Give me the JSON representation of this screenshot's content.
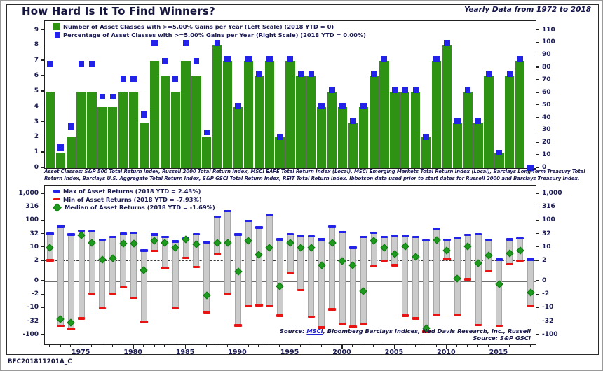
{
  "page": {
    "title": "How Hard Is It To Find Winners?",
    "period_note": "Yearly Data from 1972 to 2018",
    "chart_code": "BFC201811201A_C"
  },
  "colors": {
    "bar_green": "#2e9213",
    "marker_blue": "#2323e8",
    "marker_red": "#e81414",
    "range_gray": "#cbcbcb",
    "diamond_green": "#1e9a1e",
    "diamond_edge": "#0f7a0f",
    "text_navy": "#1b1b55",
    "link_blue": "#2222cc"
  },
  "top_chart": {
    "legend": [
      {
        "swatch": "green-square",
        "label": "Number of Asset Classes with >=5.00% Gains per Year (Left Scale) (2018 YTD = 0)"
      },
      {
        "swatch": "blue-square",
        "label": "Percentage of Asset Classes with >=5.00% Gains per Year (Right Scale) (2018 YTD = 0.00%)"
      }
    ],
    "left_axis_ticks": [
      9,
      8,
      7,
      6,
      5,
      4,
      3,
      2,
      1,
      0
    ],
    "right_axis_ticks": [
      110,
      100,
      90,
      80,
      70,
      60,
      50,
      40,
      30,
      20,
      10,
      0
    ],
    "footnote_lines": [
      "Asset Classes: S&P 500 Total Return Index,  Russell 2000 Total Return Index,  MSCI EAFE Total Return Index (Local),  MSCI Emerging Markets Total Return Index (Local),  Barclays Long-Term Treasury Total",
      "Return Index,  Barclays U.S. Aggregate Total Return Index,  S&P GSCI Total Return Index,  REIT Total Return Index. Ibbotson data used prior to start dates for Russell 2000 and Barclays Treasury Index."
    ]
  },
  "bottom_chart": {
    "legend": [
      {
        "swatch": "blue-dash",
        "label": "Max of Asset Returns (2018 YTD = 2.43%)"
      },
      {
        "swatch": "red-dash",
        "label": "Min of Asset Returns (2018 YTD = -7.93%)"
      },
      {
        "swatch": "green-diamond",
        "label": "Median of Asset Returns (2018 YTD = -1.69%)"
      }
    ],
    "axis_tick_labels": [
      "1,000",
      "316",
      "100",
      "32",
      "10",
      "2",
      "0",
      "-2",
      "-10",
      "-32",
      "-100"
    ],
    "axis_tick_values": [
      1000,
      316,
      100,
      32,
      10,
      2,
      0,
      -2,
      -10,
      -32,
      -100
    ],
    "x_axis_labels": [
      1975,
      1980,
      1985,
      1990,
      1995,
      2000,
      2005,
      2010,
      2015
    ],
    "sources": [
      {
        "prefix": "Source:",
        "link": "MSCI",
        "rest": ", Bloomberg Barclays Indices, Ned Davis Research, Inc., Russell"
      },
      {
        "prefix": "Source:",
        "link": "",
        "rest": " S&P GSCI"
      }
    ]
  },
  "chart_data": [
    {
      "type": "bar",
      "title": "Number and Percentage of Asset Classes with >=5.00% Gains per Year",
      "x": [
        1972,
        1973,
        1974,
        1975,
        1976,
        1977,
        1978,
        1979,
        1980,
        1981,
        1982,
        1983,
        1984,
        1985,
        1986,
        1987,
        1988,
        1989,
        1990,
        1991,
        1992,
        1993,
        1994,
        1995,
        1996,
        1997,
        1998,
        1999,
        2000,
        2001,
        2002,
        2003,
        2004,
        2005,
        2006,
        2007,
        2008,
        2009,
        2010,
        2011,
        2012,
        2013,
        2014,
        2015,
        2016,
        2017,
        2018
      ],
      "series": [
        {
          "name": "Number of Asset Classes with >=5.00% Gains per Year (Left Scale)",
          "type": "bar",
          "axis": "left",
          "values": [
            5,
            1,
            2,
            5,
            5,
            4,
            4,
            5,
            5,
            3,
            7,
            6,
            5,
            7,
            6,
            2,
            8,
            7,
            4,
            7,
            6,
            7,
            2,
            7,
            6,
            6,
            4,
            5,
            4,
            3,
            4,
            6,
            7,
            5,
            5,
            5,
            2,
            7,
            8,
            3,
            5,
            3,
            6,
            1,
            6,
            7,
            0
          ]
        },
        {
          "name": "Percentage of Asset Classes with >=5.00% Gains per Year (Right Scale)",
          "type": "scatter-square",
          "axis": "right",
          "values": [
            83.3,
            16.7,
            33.3,
            83.3,
            83.3,
            57.1,
            57.1,
            71.4,
            71.4,
            42.9,
            100,
            85.7,
            71.4,
            100,
            85.7,
            28.6,
            100,
            87.5,
            50,
            87.5,
            75,
            87.5,
            25,
            87.5,
            75,
            75,
            50,
            62.5,
            50,
            37.5,
            50,
            75,
            87.5,
            62.5,
            62.5,
            62.5,
            25,
            87.5,
            100,
            37.5,
            62.5,
            37.5,
            75,
            12.5,
            75,
            87.5,
            0
          ]
        }
      ],
      "ylim_left": [
        0,
        9
      ],
      "ylim_right": [
        0,
        110
      ],
      "grid": false,
      "legend_position": "top-left"
    },
    {
      "type": "range-bar",
      "title": "Max / Min / Median of Asset Returns (%)",
      "x": [
        1972,
        1973,
        1974,
        1975,
        1976,
        1977,
        1978,
        1979,
        1980,
        1981,
        1982,
        1983,
        1984,
        1985,
        1986,
        1987,
        1988,
        1989,
        1990,
        1991,
        1992,
        1993,
        1994,
        1995,
        1996,
        1997,
        1998,
        1999,
        2000,
        2001,
        2002,
        2003,
        2004,
        2005,
        2006,
        2007,
        2008,
        2009,
        2010,
        2011,
        2012,
        2013,
        2014,
        2015,
        2016,
        2017,
        2018
      ],
      "series": [
        {
          "name": "Max of Asset Returns",
          "marker": "blue-dash",
          "values": [
            34,
            64,
            32,
            44,
            42,
            20,
            26,
            34,
            37,
            7.2,
            32,
            26,
            17,
            22,
            33,
            16,
            145,
            230,
            32,
            100,
            57,
            175,
            21,
            33,
            29,
            27,
            21,
            63,
            39,
            10,
            26,
            37,
            26,
            29,
            28,
            26,
            19,
            52,
            20,
            23,
            31,
            33,
            20,
            2.4,
            21,
            23,
            2.43
          ]
        },
        {
          "name": "Median of Asset Returns",
          "marker": "green-diamond",
          "values": [
            10,
            -25,
            -34,
            30,
            15,
            2.3,
            2.9,
            14,
            14,
            1.1,
            18,
            15,
            10,
            20,
            13,
            -2.1,
            15,
            15,
            1.0,
            18,
            4.1,
            10,
            -0.7,
            15,
            10,
            10,
            1.6,
            15,
            2.0,
            1.6,
            -1.4,
            18,
            10,
            4.6,
            11,
            3.4,
            -55,
            19,
            7,
            0.3,
            11,
            1.8,
            4,
            -0.4,
            5.2,
            7,
            -1.69
          ]
        },
        {
          "name": "Min of Asset Returns",
          "marker": "red-dash",
          "values": [
            2.2,
            -45,
            -60,
            -24,
            -1.8,
            -10,
            -1.8,
            -0.9,
            -2.9,
            -33,
            6.8,
            1.3,
            -10,
            2.9,
            1.4,
            -14,
            4.7,
            -1.9,
            -44,
            -8,
            -7,
            -8,
            -19,
            0.8,
            -1.3,
            -21,
            -52,
            -11,
            -40,
            -49,
            -39,
            1.5,
            2.1,
            1.6,
            -19,
            -24,
            -75,
            -18,
            2.6,
            -18,
            0.2,
            -43,
            1.0,
            -45,
            1.7,
            2.1,
            -7.93
          ]
        }
      ],
      "y_ticks": [
        1000,
        316,
        100,
        32,
        10,
        2,
        0,
        -2,
        -10,
        -32,
        -100
      ],
      "y_scale": "symlog-custom",
      "reference_line_dashed": 2.1,
      "zero_line": 0,
      "grid": false,
      "legend_position": "top-left"
    }
  ]
}
